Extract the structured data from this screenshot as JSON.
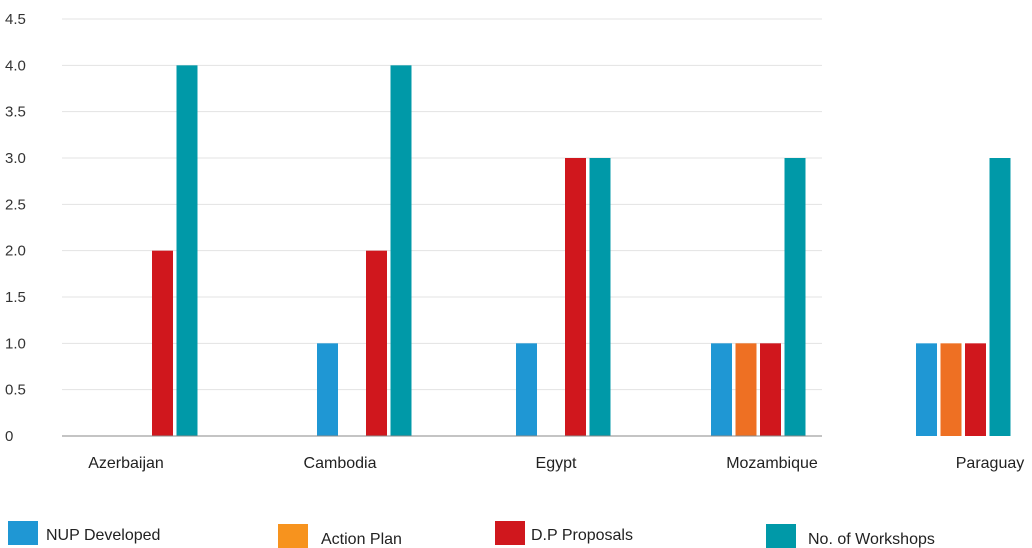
{
  "chart_data": {
    "type": "bar",
    "categories": [
      "Azerbaijan",
      "Cambodia",
      "Egypt",
      "Mozambique",
      "Paraguay"
    ],
    "series": [
      {
        "name": "NUP Developed",
        "color": "#1f97d4",
        "values": [
          0,
          1,
          1,
          1,
          1
        ]
      },
      {
        "name": "Action Plan",
        "color": "#ee7023",
        "values": [
          0,
          0,
          0,
          1,
          1
        ]
      },
      {
        "name": "D.P Proposals",
        "color": "#d0171d",
        "values": [
          2,
          2,
          3,
          1,
          1
        ]
      },
      {
        "name": "No. of Workshops",
        "color": "#0099a8",
        "values": [
          4,
          4,
          3,
          3,
          3
        ]
      }
    ],
    "ylim": [
      0,
      4.5
    ],
    "yticks": [
      "0",
      "0.5",
      "1.0",
      "1.5",
      "2.0",
      "2.5",
      "3.0",
      "3.5",
      "4.0",
      "4.5"
    ],
    "grid": true,
    "legend_position": "bottom",
    "legend_swatch_colors": [
      "#1f97d4",
      "#f7931e",
      "#d0171d",
      "#0099a8"
    ]
  }
}
